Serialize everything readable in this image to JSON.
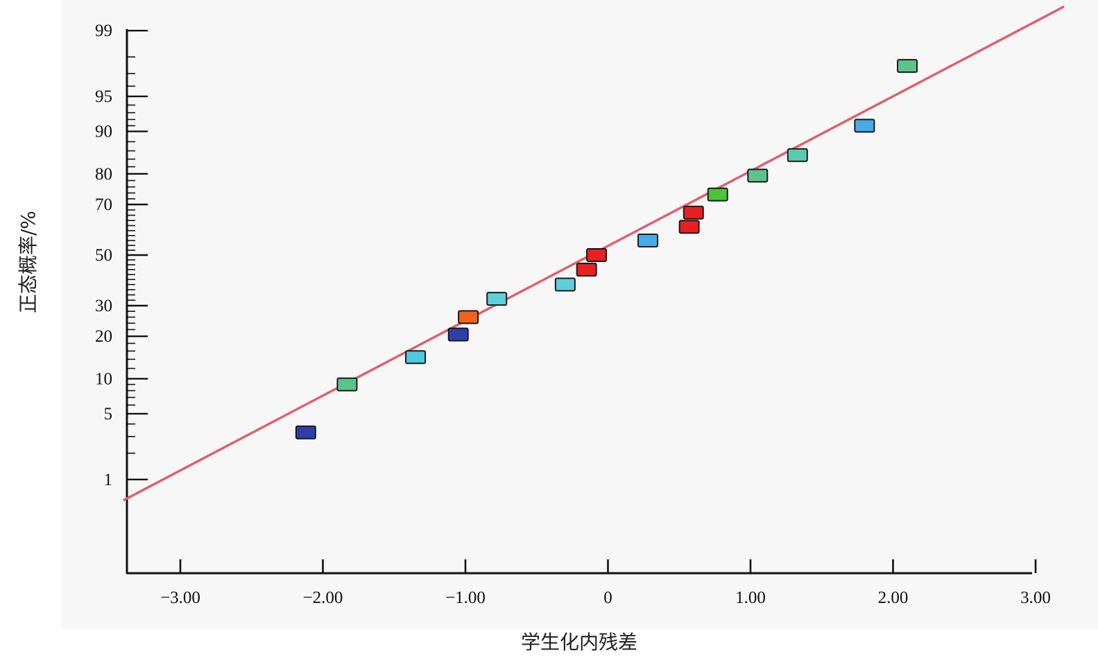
{
  "chart_data": {
    "type": "scatter",
    "title": "",
    "xlabel": "学生化内残差",
    "ylabel": "正态概率/%",
    "xlim": [
      -3.4,
      3.0
    ],
    "x_ticks": [
      -3.0,
      -2.0,
      -1.0,
      0,
      1.0,
      2.0,
      3.0
    ],
    "x_tick_labels": [
      "−3.00",
      "−2.00",
      "−1.00",
      "0",
      "1.00",
      "2.00",
      "3.00"
    ],
    "y_scale": "normal-probability",
    "y_ticks": [
      1,
      5,
      10,
      20,
      30,
      50,
      70,
      80,
      90,
      95,
      99
    ],
    "y_tick_labels": [
      "1",
      "5",
      "10",
      "20",
      "30",
      "50",
      "70",
      "80",
      "90",
      "95",
      "99"
    ],
    "grid": false,
    "legend": "none",
    "line_color": "#e0606e",
    "fit_line": {
      "x": [
        -3.4,
        3.2
      ],
      "y": [
        0.55,
        99.5
      ]
    },
    "points": [
      {
        "x": -2.12,
        "y": 3.3,
        "color": "#2f3fa8"
      },
      {
        "x": -1.83,
        "y": 9.0,
        "color": "#5cc48a"
      },
      {
        "x": -1.35,
        "y": 14.5,
        "color": "#4fc9e2"
      },
      {
        "x": -1.05,
        "y": 20.5,
        "color": "#2f3fa8"
      },
      {
        "x": -0.98,
        "y": 26.0,
        "color": "#f06318"
      },
      {
        "x": -0.78,
        "y": 32.5,
        "color": "#5dd0dc"
      },
      {
        "x": -0.3,
        "y": 38.0,
        "color": "#5dd0dc"
      },
      {
        "x": -0.15,
        "y": 44.0,
        "color": "#e82020"
      },
      {
        "x": -0.08,
        "y": 50.0,
        "color": "#e82020"
      },
      {
        "x": 0.28,
        "y": 56.0,
        "color": "#45ace8"
      },
      {
        "x": 0.57,
        "y": 61.5,
        "color": "#e82020"
      },
      {
        "x": 0.6,
        "y": 67.0,
        "color": "#e82020"
      },
      {
        "x": 0.77,
        "y": 73.5,
        "color": "#4cc33a"
      },
      {
        "x": 1.05,
        "y": 79.5,
        "color": "#5cc48a"
      },
      {
        "x": 1.33,
        "y": 85.0,
        "color": "#5cc8b0"
      },
      {
        "x": 1.8,
        "y": 91.0,
        "color": "#45ace8"
      },
      {
        "x": 2.1,
        "y": 97.5,
        "color": "#5cc48a"
      }
    ]
  }
}
